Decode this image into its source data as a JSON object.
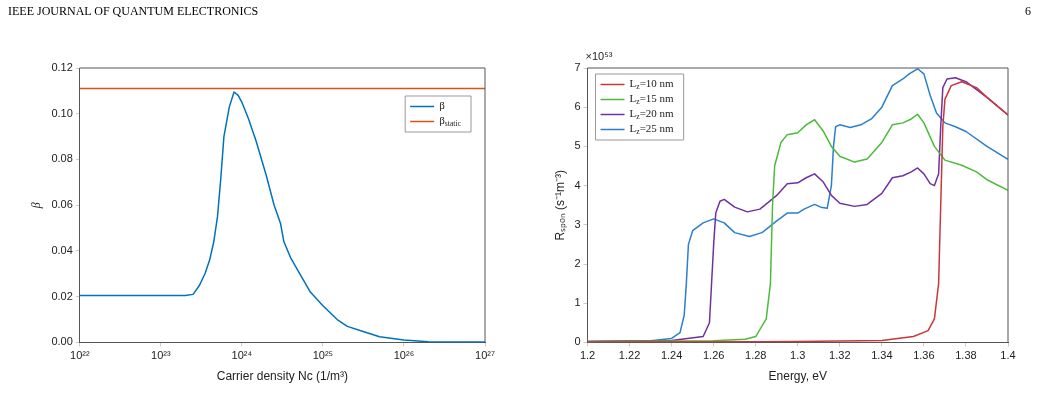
{
  "chart_data": [
    {
      "type": "line",
      "annotations": [
        "IEEE JOURNAL OF QUANTUM ELECTRONICS",
        "6"
      ],
      "xlabel": "Carrier density Nc (1/m³)",
      "ylabel": "β",
      "log": "x",
      "xlim": [
        1e+22,
        1e+27
      ],
      "xticks": [
        {
          "value": 1e+22,
          "label": "10²²"
        },
        {
          "value": 1e+23,
          "label": "10²³"
        },
        {
          "value": 1e+24,
          "label": "10²⁴"
        },
        {
          "value": 1e+25,
          "label": "10²⁵"
        },
        {
          "value": 1e+26,
          "label": "10²⁶"
        },
        {
          "value": 1e+27,
          "label": "10²⁷"
        }
      ],
      "ylim": [
        0,
        0.12
      ],
      "yticks": [
        {
          "value": 0,
          "label": "0.00"
        },
        {
          "value": 0.02,
          "label": "0.02"
        },
        {
          "value": 0.04,
          "label": "0.04"
        },
        {
          "value": 0.06,
          "label": "0.06"
        },
        {
          "value": 0.08,
          "label": "0.08"
        },
        {
          "value": 0.1,
          "label": "0.10"
        },
        {
          "value": 0.12,
          "label": "0.12"
        }
      ],
      "grid": false,
      "legend": "top right",
      "series": [
        {
          "name": "β",
          "color": "#0072bd",
          "x": [
            1e+22,
            1e+23,
            2e+23,
            2.5e+23,
            3e+23,
            3.5e+23,
            4e+23,
            4.5e+23,
            5e+23,
            5.5e+23,
            6e+23,
            7e+23,
            8e+23,
            9e+23,
            1e+24,
            1.2e+24,
            1.5e+24,
            2e+24,
            2.5e+24,
            3e+24,
            3.3e+24,
            4e+24,
            5e+24,
            7e+24,
            1e+25,
            1.5e+25,
            2e+25,
            3e+25,
            5e+25,
            1e+26,
            2e+26,
            5e+26,
            1e+27
          ],
          "values": [
            0.0205,
            0.0205,
            0.0205,
            0.021,
            0.025,
            0.03,
            0.036,
            0.044,
            0.055,
            0.072,
            0.09,
            0.103,
            0.1095,
            0.108,
            0.105,
            0.098,
            0.088,
            0.073,
            0.06,
            0.052,
            0.044,
            0.037,
            0.031,
            0.022,
            0.016,
            0.01,
            0.007,
            0.005,
            0.0025,
            0.001,
            0.0003,
            0.0002,
            0.0002
          ]
        },
        {
          "name": "β$_{static}$",
          "color": "#d95319",
          "x": [
            1e+22,
            1e+27
          ],
          "values": [
            0.111,
            0.111
          ]
        }
      ]
    },
    {
      "type": "line",
      "annotations": [
        "×10⁵³"
      ],
      "xlabel": "Energy, eV",
      "ylabel": "Rₛₚₒₙ (s⁻¹m⁻³)",
      "xlim": [
        1.2,
        1.4
      ],
      "xticks": [
        1.2,
        1.22,
        1.24,
        1.26,
        1.28,
        1.3,
        1.32,
        1.34,
        1.36,
        1.38,
        1.4
      ],
      "ylim": [
        0,
        7
      ],
      "yticks": [
        0,
        1,
        2,
        3,
        4,
        5,
        6,
        7
      ],
      "grid": false,
      "legend": "top left",
      "series": [
        {
          "name": "L$_{z}$=10 nm",
          "color": "#c8383a",
          "x": [
            1.2,
            1.3,
            1.34,
            1.355,
            1.362,
            1.365,
            1.367,
            1.368,
            1.369,
            1.37,
            1.373,
            1.378,
            1.385,
            1.39,
            1.4
          ],
          "values": [
            0.01,
            0.02,
            0.05,
            0.15,
            0.3,
            0.6,
            1.5,
            3.5,
            5.5,
            6.2,
            6.55,
            6.65,
            6.5,
            6.25,
            5.8
          ]
        },
        {
          "name": "L$_{z}$=15 nm",
          "color": "#4dba3c",
          "x": [
            1.2,
            1.26,
            1.275,
            1.28,
            1.285,
            1.287,
            1.288,
            1.289,
            1.292,
            1.295,
            1.3,
            1.304,
            1.308,
            1.312,
            1.316,
            1.32,
            1.327,
            1.333,
            1.34,
            1.345,
            1.35,
            1.354,
            1.357,
            1.36,
            1.365,
            1.37,
            1.378,
            1.385,
            1.39,
            1.4
          ],
          "values": [
            0.02,
            0.04,
            0.08,
            0.15,
            0.6,
            1.5,
            3.5,
            4.5,
            5.1,
            5.3,
            5.35,
            5.55,
            5.68,
            5.4,
            5.0,
            4.75,
            4.6,
            4.68,
            5.1,
            5.55,
            5.6,
            5.7,
            5.82,
            5.6,
            5.0,
            4.65,
            4.52,
            4.35,
            4.15,
            3.88
          ]
        },
        {
          "name": "L$_{z}$=20 nm",
          "color": "#7030a0",
          "x": [
            1.2,
            1.24,
            1.255,
            1.258,
            1.26,
            1.261,
            1.263,
            1.265,
            1.27,
            1.276,
            1.282,
            1.29,
            1.295,
            1.3,
            1.304,
            1.308,
            1.312,
            1.316,
            1.32,
            1.327,
            1.333,
            1.34,
            1.345,
            1.35,
            1.354,
            1.357,
            1.36,
            1.363,
            1.365,
            1.367,
            1.368,
            1.369,
            1.371,
            1.375,
            1.38,
            1.39,
            1.4
          ],
          "values": [
            0.02,
            0.05,
            0.15,
            0.5,
            2.5,
            3.3,
            3.6,
            3.65,
            3.45,
            3.33,
            3.4,
            3.75,
            4.05,
            4.07,
            4.2,
            4.3,
            4.1,
            3.75,
            3.55,
            3.47,
            3.52,
            3.8,
            4.2,
            4.25,
            4.35,
            4.45,
            4.3,
            4.05,
            4.0,
            4.3,
            5.5,
            6.5,
            6.72,
            6.75,
            6.65,
            6.25,
            5.8
          ]
        },
        {
          "name": "L$_{z}$=25 nm",
          "color": "#2a7fcf",
          "x": [
            1.2,
            1.23,
            1.24,
            1.244,
            1.246,
            1.247,
            1.248,
            1.25,
            1.255,
            1.26,
            1.265,
            1.27,
            1.277,
            1.283,
            1.29,
            1.295,
            1.3,
            1.303,
            1.308,
            1.311,
            1.314,
            1.316,
            1.317,
            1.318,
            1.32,
            1.325,
            1.33,
            1.335,
            1.34,
            1.345,
            1.35,
            1.353,
            1.357,
            1.36,
            1.363,
            1.366,
            1.37,
            1.375,
            1.38,
            1.39,
            1.4
          ],
          "values": [
            0.02,
            0.04,
            0.1,
            0.25,
            0.7,
            1.5,
            2.5,
            2.85,
            3.05,
            3.15,
            3.05,
            2.8,
            2.7,
            2.8,
            3.1,
            3.3,
            3.3,
            3.4,
            3.52,
            3.45,
            3.42,
            4.0,
            5.0,
            5.5,
            5.55,
            5.48,
            5.55,
            5.7,
            6.0,
            6.55,
            6.72,
            6.85,
            6.98,
            6.85,
            6.3,
            5.85,
            5.6,
            5.5,
            5.38,
            5.0,
            4.67
          ]
        }
      ]
    }
  ]
}
